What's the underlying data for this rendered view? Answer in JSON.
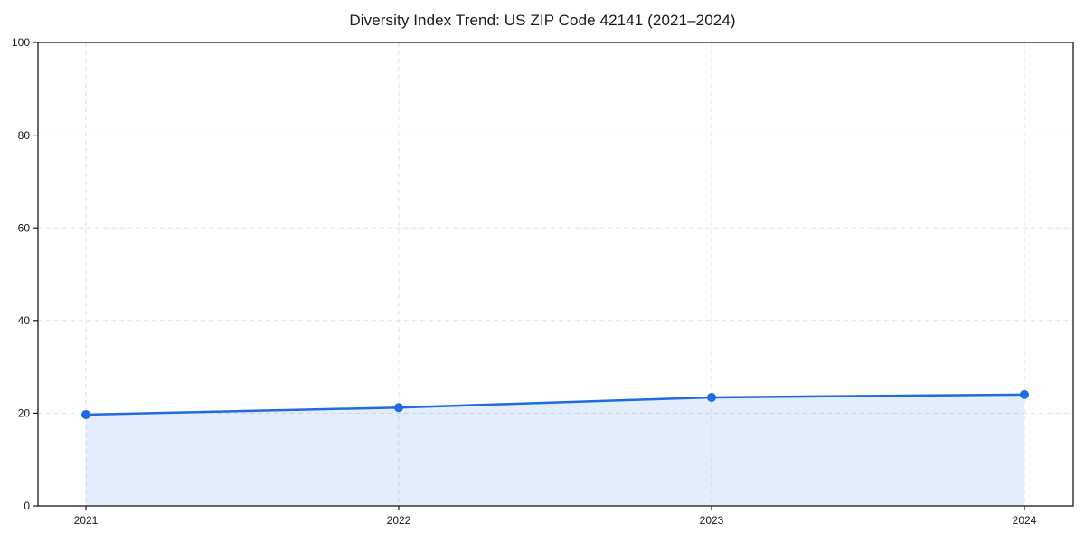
{
  "chart_data": {
    "type": "area",
    "title": "Diversity Index Trend: US ZIP Code 42141 (2021–2024)",
    "categories": [
      "2021",
      "2022",
      "2023",
      "2024"
    ],
    "series": [
      {
        "name": "Diversity Index",
        "values": [
          19.7,
          21.2,
          23.4,
          24.0
        ]
      }
    ],
    "xlabel": "",
    "ylabel": "",
    "ylim": [
      0,
      100
    ],
    "yticks": [
      0,
      20,
      40,
      60,
      80,
      100
    ],
    "grid": true,
    "grid_style": "dashed",
    "legend": "none",
    "line_color": "#1f6be0",
    "marker_color": "#1f6be0",
    "fill_color": "rgba(33,110,225,0.12)",
    "grid_color": "#e2e2e2",
    "axis_color": "#1a1a1a",
    "text_color": "#1a1a1a",
    "background_color": "#ffffff"
  }
}
